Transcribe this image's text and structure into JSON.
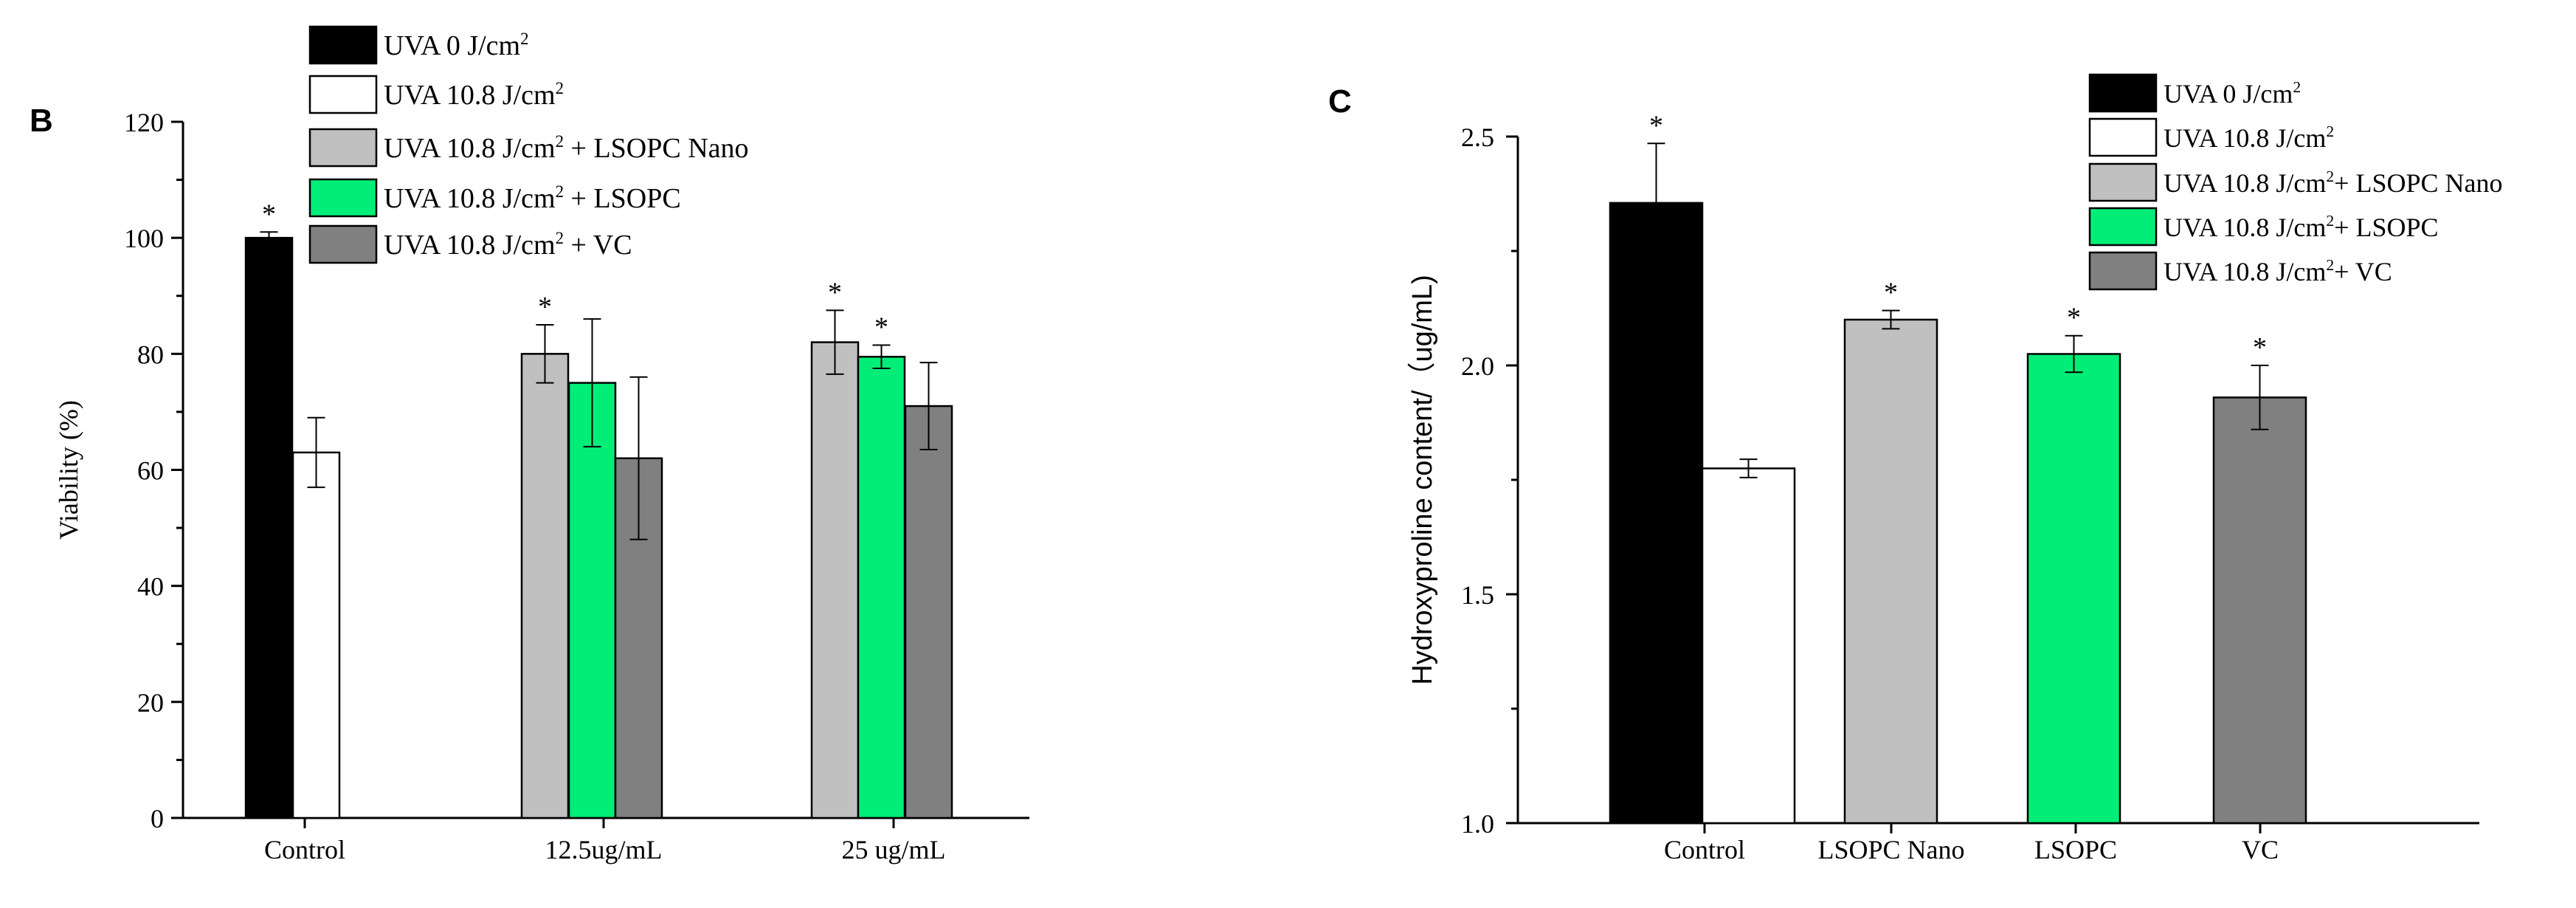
{
  "chart_data": [
    {
      "panel_label": "B",
      "type": "bar",
      "ylabel": "Viability (%)",
      "xlabel": "",
      "ylim": [
        0,
        120
      ],
      "yticks": [
        0,
        20,
        40,
        60,
        80,
        100,
        120
      ],
      "categories": [
        "Control",
        "12.5ug/mL",
        "25 ug/mL"
      ],
      "series": [
        {
          "name": "UVA 0 J/cm",
          "sup": "2",
          "suffix": "",
          "color": "#000000",
          "values": [
            100,
            null,
            null
          ],
          "errors": [
            1,
            null,
            null
          ],
          "star": [
            "*",
            "",
            ""
          ]
        },
        {
          "name": "UVA 10.8 J/cm",
          "sup": "2",
          "suffix": "",
          "color": "#ffffff",
          "values": [
            63,
            null,
            null
          ],
          "errors": [
            6,
            null,
            null
          ],
          "star": [
            "",
            "",
            ""
          ]
        },
        {
          "name": "UVA 10.8 J/cm",
          "sup": "2",
          "suffix": " + LSOPC Nano",
          "color": "#c0c0c0",
          "values": [
            null,
            80,
            82
          ],
          "errors": [
            null,
            5,
            5.5
          ],
          "star": [
            "",
            "*",
            "*"
          ]
        },
        {
          "name": "UVA 10.8 J/cm",
          "sup": "2",
          "suffix": " + LSOPC",
          "color": "#00ee77",
          "values": [
            null,
            75,
            79.5
          ],
          "errors": [
            null,
            11,
            2
          ],
          "star": [
            "",
            "",
            "*"
          ]
        },
        {
          "name": "UVA 10.8 J/cm",
          "sup": "2",
          "suffix": " + VC",
          "color": "#808080",
          "values": [
            null,
            62,
            71
          ],
          "errors": [
            null,
            14,
            7.5
          ],
          "star": [
            "",
            "",
            ""
          ]
        }
      ]
    },
    {
      "panel_label": "C",
      "type": "bar",
      "ylabel": "Hydroxyproline content/（ug/mL)",
      "xlabel": "",
      "ylim": [
        1.0,
        2.5
      ],
      "yticks": [
        "1.0",
        "1.5",
        "2.0",
        "2.5"
      ],
      "categories": [
        "Control",
        "LSOPC Nano",
        "LSOPC",
        "VC"
      ],
      "series": [
        {
          "name": "UVA 0 J/cm",
          "sup": "2",
          "suffix": "",
          "color": "#000000",
          "values": [
            2.355,
            null,
            null,
            null
          ],
          "errors": [
            0.13,
            null,
            null,
            null
          ],
          "star": [
            "*",
            "",
            "",
            ""
          ]
        },
        {
          "name": "UVA 10.8 J/cm",
          "sup": "2",
          "suffix": "",
          "color": "#ffffff",
          "values": [
            1.775,
            null,
            null,
            null
          ],
          "errors": [
            0.02,
            null,
            null,
            null
          ],
          "star": [
            "",
            "",
            "",
            ""
          ]
        },
        {
          "name": "UVA 10.8 J/cm",
          "sup": "2",
          "suffix": "+ LSOPC Nano",
          "color": "#c0c0c0",
          "values": [
            null,
            2.1,
            null,
            null
          ],
          "errors": [
            null,
            0.02,
            null,
            null
          ],
          "star": [
            "",
            "*",
            "",
            ""
          ]
        },
        {
          "name": "UVA 10.8 J/cm",
          "sup": "2",
          "suffix": "+ LSOPC",
          "color": "#00ee77",
          "values": [
            null,
            null,
            2.025,
            null
          ],
          "errors": [
            null,
            null,
            0.04,
            null
          ],
          "star": [
            "",
            "",
            "*",
            ""
          ]
        },
        {
          "name": "UVA 10.8 J/cm",
          "sup": "2",
          "suffix": "+ VC",
          "color": "#808080",
          "values": [
            null,
            null,
            null,
            1.93
          ],
          "errors": [
            null,
            null,
            null,
            0.07
          ],
          "star": [
            "",
            "",
            "",
            "*"
          ]
        }
      ]
    }
  ]
}
